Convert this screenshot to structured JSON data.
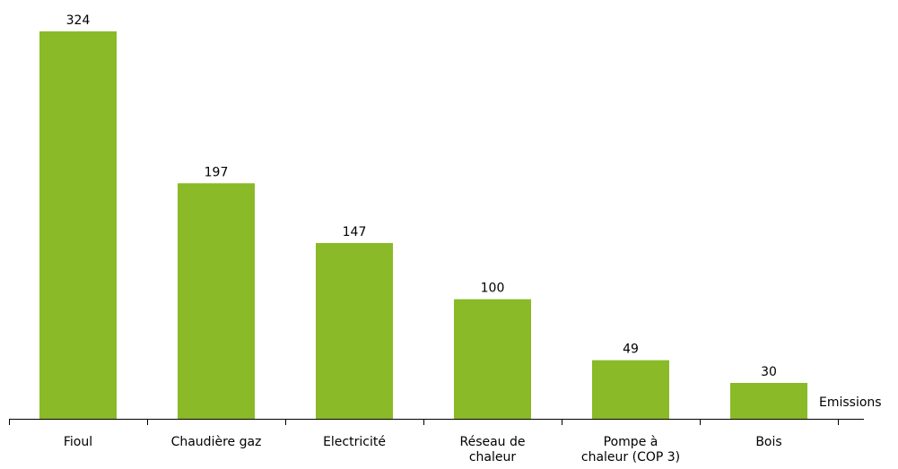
{
  "chart_data": {
    "type": "bar",
    "categories": [
      "Fioul",
      "Chaudière gaz",
      "Electricité",
      "Réseau de chaleur",
      "Pompe à chaleur (COP 3)",
      "Bois"
    ],
    "series": [
      {
        "name": "Emissions",
        "color": "#8aba27",
        "values": [
          324,
          197,
          147,
          100,
          49,
          30
        ]
      }
    ]
  }
}
